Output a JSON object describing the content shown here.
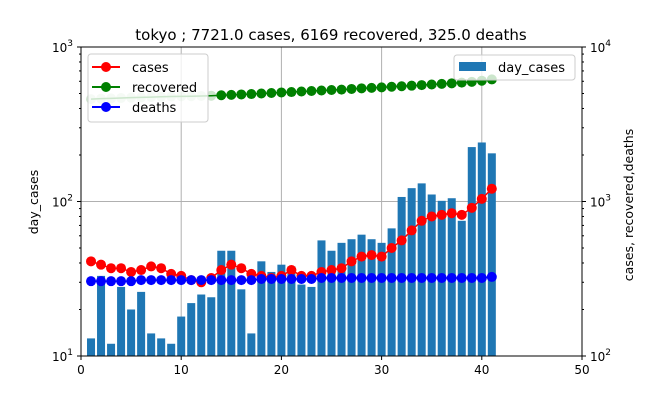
{
  "chart_data": {
    "type": "bar+line",
    "title": "tokyo ; 7721.0 cases, 6169 recovered, 325.0 deaths",
    "xlabel": "",
    "ylabel_left": "day_cases",
    "ylabel_right": "cases, recovered,deaths",
    "xlim": [
      0,
      50
    ],
    "ylim_left": [
      10,
      1000
    ],
    "ylim_right": [
      100,
      10000
    ],
    "yscale": "log",
    "grid": true,
    "x_ticks": [
      "0",
      "10",
      "20",
      "30",
      "40",
      "50"
    ],
    "y_ticks_left": [
      "10^1",
      "10^2",
      "10^3"
    ],
    "y_ticks_right": [
      "10^2",
      "10^3",
      "10^4"
    ],
    "legend_left": [
      "cases",
      "recovered",
      "deaths"
    ],
    "legend_right": [
      "day_cases"
    ],
    "x": [
      1,
      2,
      3,
      4,
      5,
      6,
      7,
      8,
      9,
      10,
      11,
      12,
      13,
      14,
      15,
      16,
      17,
      18,
      19,
      20,
      21,
      22,
      23,
      24,
      25,
      26,
      27,
      28,
      29,
      30,
      31,
      32,
      33,
      34,
      35,
      36,
      37,
      38,
      39,
      40,
      41
    ],
    "series": [
      {
        "name": "day_cases",
        "axis": "left",
        "kind": "bar",
        "color": "#1f77b4",
        "values": [
          13,
          33,
          12,
          28,
          20,
          26,
          14,
          13,
          12,
          18,
          22,
          25,
          24,
          48,
          48,
          27,
          14,
          41,
          35,
          39,
          38,
          29,
          28,
          56,
          48,
          54,
          57,
          61,
          57,
          54,
          67,
          107,
          122,
          131,
          111,
          101,
          105,
          75,
          225,
          241,
          205
        ]
      },
      {
        "name": "cases",
        "axis": "right",
        "kind": "line",
        "color": "#ff0000",
        "values": [
          410,
          390,
          370,
          370,
          350,
          360,
          380,
          370,
          340,
          330,
          310,
          300,
          320,
          360,
          390,
          370,
          340,
          330,
          320,
          330,
          360,
          330,
          330,
          350,
          360,
          370,
          410,
          440,
          450,
          440,
          500,
          560,
          650,
          750,
          800,
          820,
          840,
          820,
          910,
          1040,
          1210
        ]
      },
      {
        "name": "recovered",
        "axis": "right",
        "kind": "line",
        "color": "#008000",
        "values": [
          4600,
          4630,
          4650,
          4680,
          4700,
          4720,
          4740,
          4760,
          4780,
          4790,
          4800,
          4820,
          4840,
          4870,
          4900,
          4930,
          4960,
          5000,
          5040,
          5080,
          5110,
          5150,
          5190,
          5230,
          5270,
          5300,
          5350,
          5400,
          5440,
          5480,
          5530,
          5570,
          5620,
          5670,
          5720,
          5770,
          5820,
          5880,
          5950,
          6050,
          6169
        ]
      },
      {
        "name": "deaths",
        "axis": "right",
        "kind": "line",
        "color": "#0000ff",
        "values": [
          305,
          305,
          305,
          305,
          305,
          310,
          310,
          310,
          310,
          310,
          310,
          310,
          310,
          310,
          310,
          310,
          310,
          315,
          315,
          315,
          315,
          315,
          315,
          320,
          320,
          320,
          320,
          320,
          320,
          320,
          320,
          320,
          320,
          320,
          320,
          320,
          320,
          320,
          320,
          320,
          325
        ]
      }
    ]
  }
}
